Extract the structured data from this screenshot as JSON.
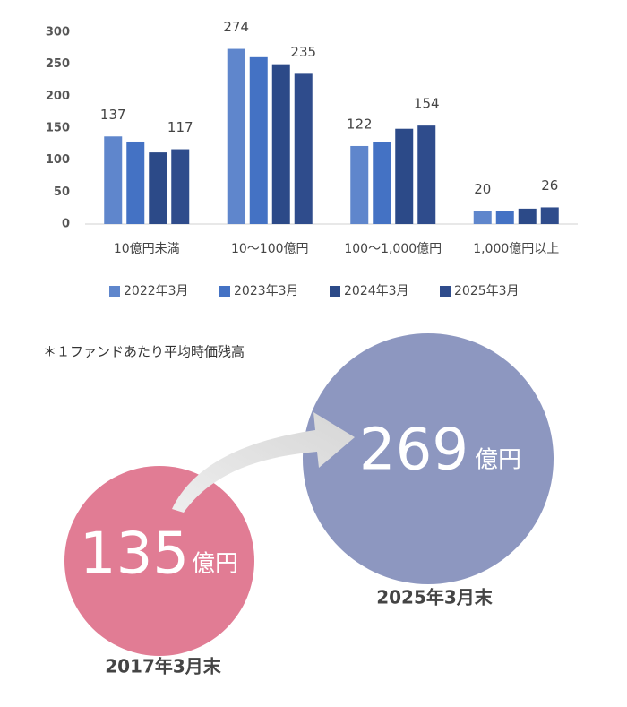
{
  "chart_data": {
    "type": "bar",
    "categories": [
      "10億円未満",
      "10～100億円",
      "100～1,000億円",
      "1,000億円以上"
    ],
    "series": [
      {
        "name": "2022年3月",
        "color": "#5f86cc",
        "values": [
          137,
          274,
          122,
          20
        ],
        "show_labels": true
      },
      {
        "name": "2023年3月",
        "color": "#4472c4",
        "values": [
          129,
          261,
          128,
          20
        ],
        "show_labels": false
      },
      {
        "name": "2024年3月",
        "color": "#2c4a88",
        "values": [
          112,
          250,
          149,
          24
        ],
        "show_labels": false
      },
      {
        "name": "2025年3月",
        "color": "#2f4c8c",
        "values": [
          117,
          235,
          154,
          26
        ],
        "show_labels": true
      }
    ],
    "ylim": [
      0,
      300
    ],
    "yticks": [
      0,
      50,
      100,
      150,
      200,
      250,
      300
    ],
    "grid": false,
    "legend": "bottom"
  },
  "infographic": {
    "note": "＊１ファンドあたり平均時価残高",
    "before": {
      "value": 135,
      "unit": "億円",
      "label": "2017年3月末"
    },
    "after": {
      "value": 269,
      "unit": "億円",
      "label": "2025年3月末"
    }
  }
}
